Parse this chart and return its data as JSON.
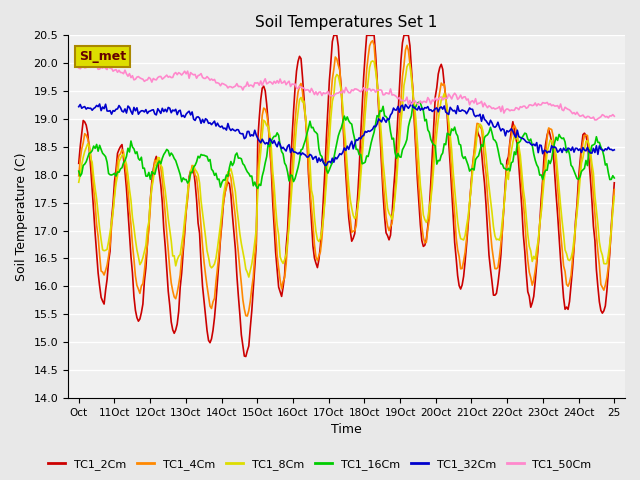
{
  "title": "Soil Temperatures Set 1",
  "xlabel": "Time",
  "ylabel": "Soil Temperature (C)",
  "ylim": [
    14.0,
    20.5
  ],
  "yticks": [
    14.0,
    14.5,
    15.0,
    15.5,
    16.0,
    16.5,
    17.0,
    17.5,
    18.0,
    18.5,
    19.0,
    19.5,
    20.0,
    20.5
  ],
  "background_color": "#e8e8e8",
  "plot_background": "#f0f0f0",
  "grid_color": "#ffffff",
  "series": {
    "TC1_2Cm": {
      "color": "#cc0000",
      "lw": 1.2
    },
    "TC1_4Cm": {
      "color": "#ff8800",
      "lw": 1.2
    },
    "TC1_8Cm": {
      "color": "#dddd00",
      "lw": 1.2
    },
    "TC1_16Cm": {
      "color": "#00cc00",
      "lw": 1.2
    },
    "TC1_32Cm": {
      "color": "#0000cc",
      "lw": 1.2
    },
    "TC1_50Cm": {
      "color": "#ff88cc",
      "lw": 1.2
    }
  },
  "legend_loc": "lower center",
  "watermark_text": "SI_met",
  "watermark_bg": "#dddd00",
  "watermark_border": "#aa8800"
}
